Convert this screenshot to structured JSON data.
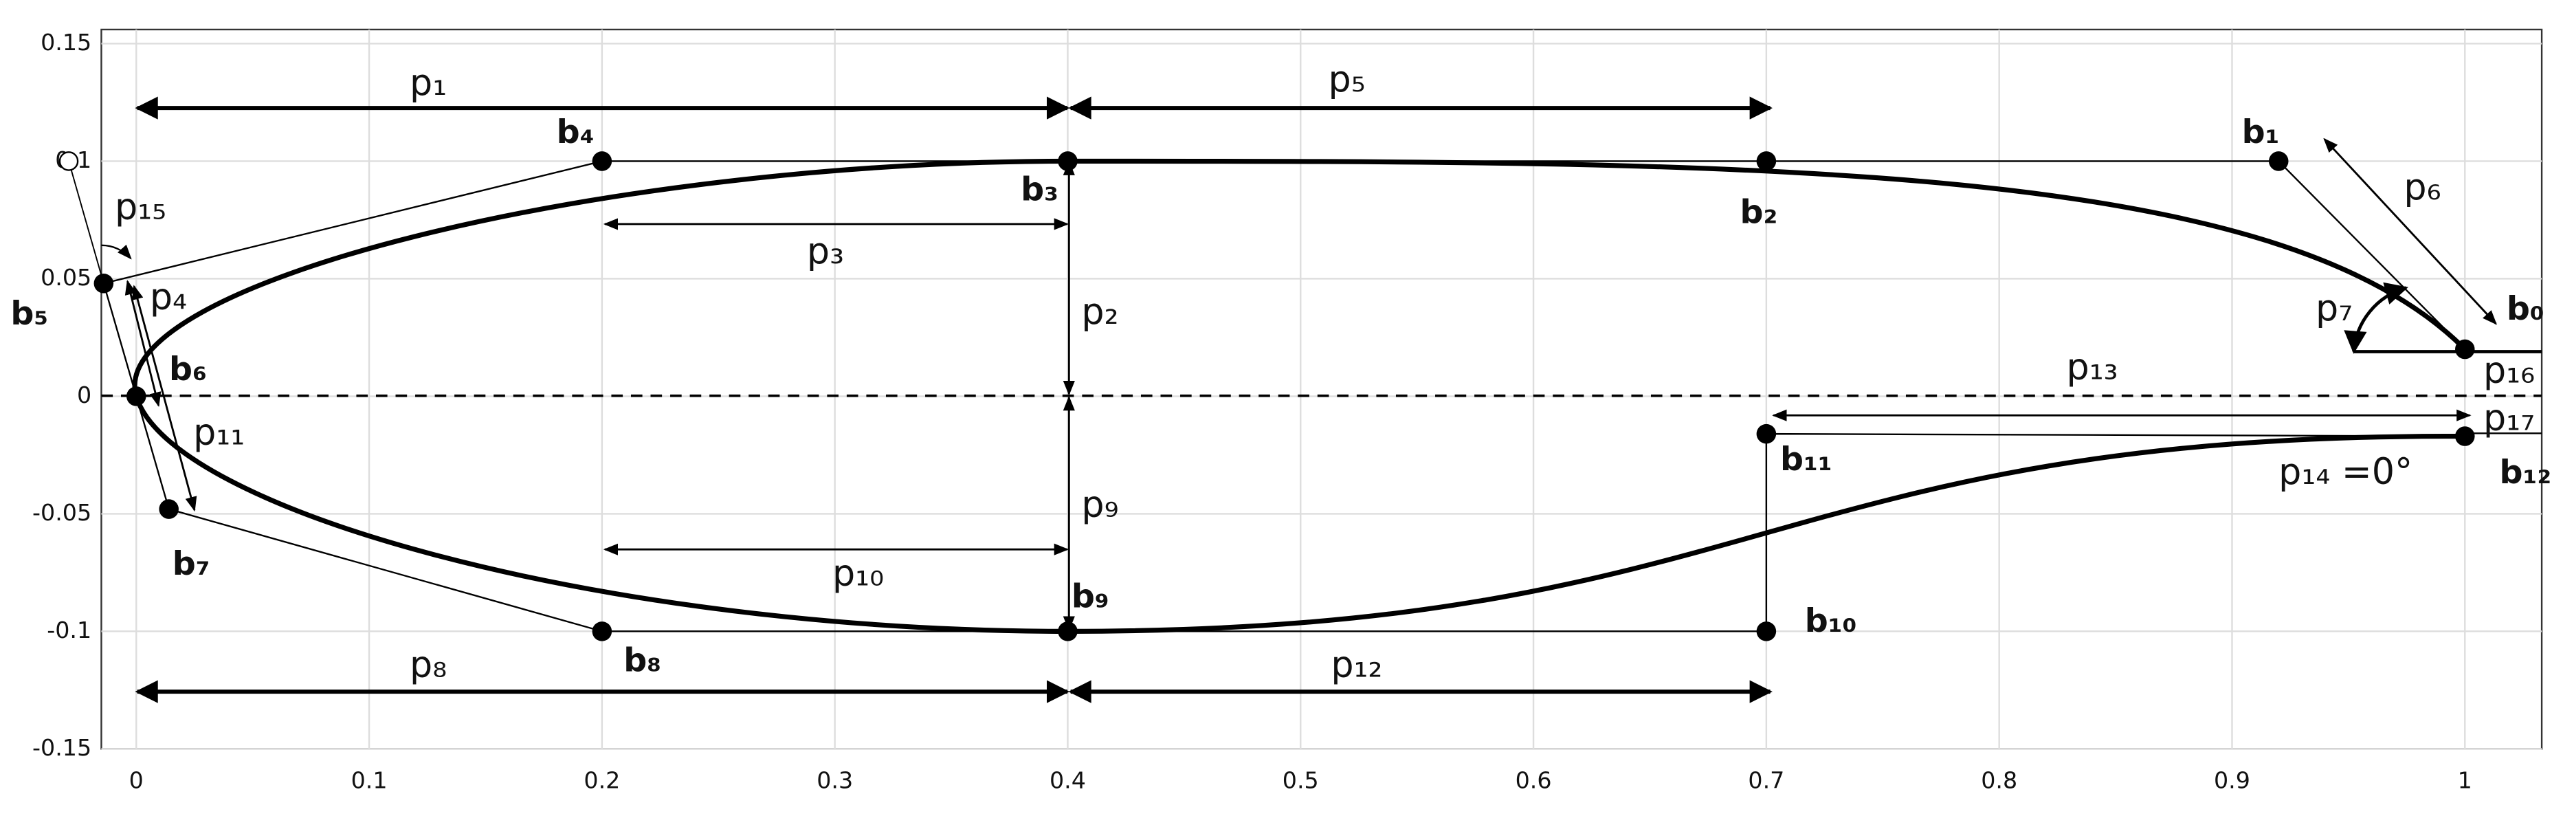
{
  "axes": {
    "xlim": [
      -0.015,
      1.033
    ],
    "ylim": [
      -0.15,
      0.156
    ],
    "xticks": [
      0,
      0.1,
      0.2,
      0.3,
      0.4,
      0.5,
      0.6,
      0.7,
      0.8,
      0.9,
      1
    ],
    "yticks": [
      -0.15,
      -0.1,
      -0.05,
      0,
      0.05,
      0.1,
      0.15
    ],
    "grid": true
  },
  "points": [
    {
      "label": "b₀",
      "x": 1,
      "y": 0.02
    },
    {
      "label": "b₁",
      "x": 0.92,
      "y": 0.1
    },
    {
      "label": "b₂",
      "x": 0.7,
      "y": 0.1
    },
    {
      "label": "b₃",
      "x": 0.4,
      "y": 0.1
    },
    {
      "label": "b₄",
      "x": 0.2,
      "y": 0.1
    },
    {
      "label": "b₅",
      "x": -0.014,
      "y": 0.048
    },
    {
      "label": "b₆",
      "x": 0,
      "y": 0
    },
    {
      "label": "b₇",
      "x": 0.014,
      "y": -0.048
    },
    {
      "label": "b₈",
      "x": 0.2,
      "y": -0.1
    },
    {
      "label": "b₉",
      "x": 0.4,
      "y": -0.1
    },
    {
      "label": "b₁₀",
      "x": 0.7,
      "y": -0.1
    },
    {
      "label": "b₁₁",
      "x": 0.7,
      "y": -0.016
    },
    {
      "label": "b₁₂",
      "x": 1,
      "y": -0.017
    }
  ],
  "aux_point": {
    "x": -0.029,
    "y": 0.1
  },
  "params": [
    "p₁",
    "p₂",
    "p₃",
    "p₄",
    "p₅",
    "p₆",
    "p₇",
    "p₈",
    "p₉",
    "p₁₀",
    "p₁₁",
    "p₁₂",
    "p₁₃",
    "p₁₄ =0°",
    "p₁₅",
    "p₁₆",
    "p₁₇"
  ]
}
